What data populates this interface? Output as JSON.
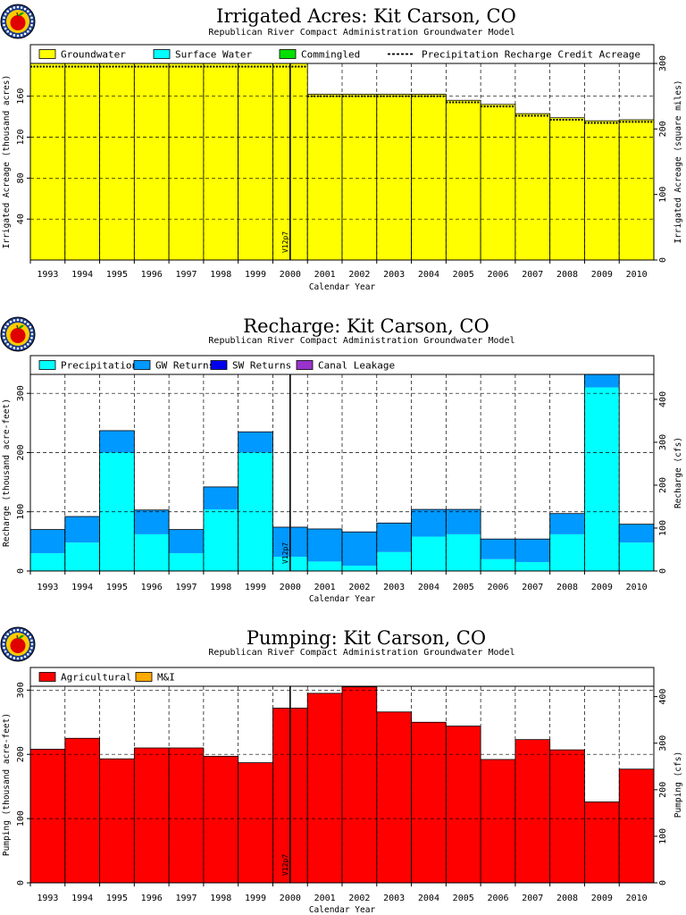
{
  "colors": {
    "groundwater": "#ffff00",
    "surface_water": "#00ffff",
    "commingled": "#00e000",
    "precipitation": "#00ffff",
    "gw_returns": "#0099ff",
    "sw_returns": "#0000ee",
    "canal_leakage": "#9933cc",
    "agricultural": "#ff0000",
    "mi": "#ffaa00",
    "logo_ring": "#1a3c8c",
    "logo_fill": "#ffcc00",
    "logo_apple": "#e00000"
  },
  "icons": [
    "logo-icon"
  ],
  "chart_data": [
    {
      "type": "bar",
      "title": "Irrigated Acres: Kit Carson, CO",
      "subtitle": "Republican River Compact Administration Groundwater Model",
      "xlabel": "Calendar Year",
      "ylabel": "Irrigated Acreage (thousand acres)",
      "ylabel_right": "Irrigated Acreage (square miles)",
      "categories": [
        "1993",
        "1994",
        "1995",
        "1996",
        "1997",
        "1998",
        "1999",
        "2000",
        "2001",
        "2002",
        "2003",
        "2004",
        "2005",
        "2006",
        "2007",
        "2008",
        "2009",
        "2010"
      ],
      "series": [
        {
          "name": "Groundwater",
          "values": [
            192,
            192,
            192,
            192,
            192,
            192,
            192,
            192,
            162,
            162,
            162,
            162,
            156,
            152,
            143,
            139,
            136,
            137
          ]
        },
        {
          "name": "Surface Water",
          "values": [
            0,
            0,
            0,
            0,
            0,
            0,
            0,
            0,
            0,
            0,
            0,
            0,
            0,
            0,
            0,
            0,
            0,
            0
          ]
        },
        {
          "name": "Commingled",
          "values": [
            0,
            0,
            0,
            0,
            0,
            0,
            0,
            0,
            0,
            0,
            0,
            0,
            0,
            0,
            0,
            0,
            0,
            0
          ]
        }
      ],
      "line_series": {
        "name": "Precipitation Recharge Credit Acreage",
        "values": [
          189,
          189,
          189,
          189,
          189,
          189,
          189,
          189,
          160,
          160,
          160,
          160,
          154,
          150,
          141,
          137,
          134,
          135
        ]
      },
      "ylim": [
        0,
        192
      ],
      "yticks": [
        40,
        80,
        120,
        160
      ],
      "yticks_right": [
        0,
        100,
        200,
        300
      ],
      "right_scale": 1.5625,
      "grid": true,
      "legend": "top",
      "marker": {
        "label": "V12p7",
        "x_index": 7.5
      }
    },
    {
      "type": "bar",
      "title": "Recharge: Kit Carson, CO",
      "subtitle": "Republican River Compact Administration Groundwater Model",
      "xlabel": "Calendar Year",
      "ylabel": "Recharge (thousand acre-feet)",
      "ylabel_right": "Recharge (cfs)",
      "categories": [
        "1993",
        "1994",
        "1995",
        "1996",
        "1997",
        "1998",
        "1999",
        "2000",
        "2001",
        "2002",
        "2003",
        "2004",
        "2005",
        "2006",
        "2007",
        "2008",
        "2009",
        "2010"
      ],
      "series": [
        {
          "name": "Precipitation",
          "values": [
            30,
            48,
            200,
            62,
            30,
            104,
            200,
            24,
            16,
            9,
            32,
            58,
            62,
            20,
            15,
            62,
            310,
            48
          ]
        },
        {
          "name": "GW Returns",
          "values": [
            40,
            44,
            37,
            41,
            40,
            38,
            35,
            50,
            55,
            57,
            49,
            46,
            42,
            34,
            39,
            35,
            22,
            31
          ]
        },
        {
          "name": "SW Returns",
          "values": [
            0,
            0,
            0,
            0,
            0,
            0,
            0,
            0,
            0,
            0,
            0,
            0,
            0,
            0,
            0,
            0,
            0,
            0
          ]
        },
        {
          "name": "Canal Leakage",
          "values": [
            0,
            0,
            0,
            0,
            0,
            0,
            0,
            0,
            0,
            0,
            0,
            0,
            0,
            0,
            0,
            0,
            0,
            0
          ]
        }
      ],
      "ylim": [
        0,
        332
      ],
      "yticks": [
        0,
        100,
        200,
        300
      ],
      "yticks_right": [
        0,
        100,
        200,
        300,
        400
      ],
      "right_scale": 1.38,
      "grid": true,
      "legend": "top",
      "marker": {
        "label": "V12p7",
        "x_index": 7.5
      }
    },
    {
      "type": "bar",
      "title": "Pumping: Kit Carson, CO",
      "subtitle": "Republican River Compact Administration Groundwater Model",
      "xlabel": "Calendar Year",
      "ylabel": "Pumping (thousand acre-feet)",
      "ylabel_right": "Pumping (cfs)",
      "categories": [
        "1993",
        "1994",
        "1995",
        "1996",
        "1997",
        "1998",
        "1999",
        "2000",
        "2001",
        "2002",
        "2003",
        "2004",
        "2005",
        "2006",
        "2007",
        "2008",
        "2009",
        "2010"
      ],
      "series": [
        {
          "name": "Agricultural",
          "values": [
            208,
            225,
            193,
            210,
            210,
            197,
            187,
            272,
            295,
            305,
            266,
            250,
            244,
            192,
            223,
            207,
            126,
            177
          ]
        },
        {
          "name": "M&I",
          "values": [
            0,
            0,
            0,
            0,
            0,
            0,
            0,
            0,
            0,
            0,
            0,
            0,
            0,
            0,
            0,
            0,
            0,
            0
          ]
        }
      ],
      "ylim": [
        0,
        306
      ],
      "yticks": [
        0,
        100,
        200,
        300
      ],
      "yticks_right": [
        0,
        100,
        200,
        300,
        400
      ],
      "right_scale": 1.38,
      "grid": true,
      "legend": "top",
      "marker": {
        "label": "V12p7",
        "x_index": 7.5
      }
    }
  ]
}
